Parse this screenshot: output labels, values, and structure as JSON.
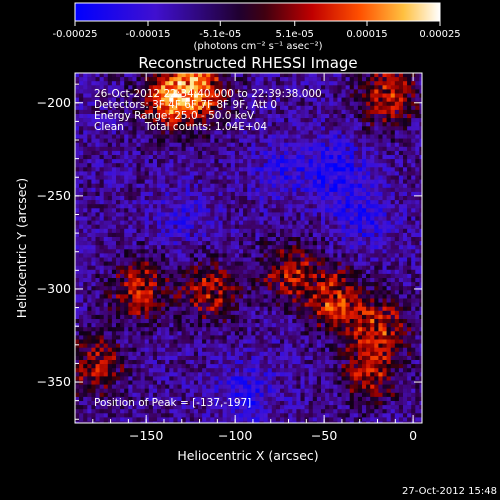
{
  "colorbar": {
    "tick_labels": [
      "-0.00025",
      "-0.00015",
      "-5.1e-05",
      "5.1e-05",
      "0.00015",
      "0.00025"
    ],
    "tick_values": [
      -0.00025,
      -0.00015,
      -5.1e-05,
      5.1e-05,
      0.00015,
      0.00025
    ],
    "units_label": "(photons cm⁻² s⁻¹ asec⁻²)",
    "range": [
      -0.00025,
      0.00025
    ]
  },
  "info": {
    "line1": "26-Oct-2012 22:34:40.000 to 22:39:38.000",
    "line2": "Detectors: 3F 4F 6F 7F 8F 9F, Att 0",
    "line3": "Energy Range: 25.0 - 50.0 keV",
    "line4_a": "Clean",
    "line4_b": "Total counts: 1.04E+04",
    "peak": "Position of Peak = [-137,-197]"
  },
  "footer": {
    "timestamp": "27-Oct-2012 15:48"
  },
  "chart_data": {
    "type": "heatmap",
    "title": "Reconstructed RHESSI Image",
    "xlabel": "Heliocentric X (arcsec)",
    "ylabel": "Heliocentric Y (arcsec)",
    "xlim": [
      -190,
      5
    ],
    "ylim": [
      -372,
      -184
    ],
    "x_ticks": [
      -150,
      -100,
      -50,
      0
    ],
    "y_ticks": [
      -350,
      -300,
      -250,
      -200
    ],
    "x_tick_labels": [
      "−150",
      "−100",
      "−50",
      "0"
    ],
    "y_tick_labels": [
      "−350",
      "−300",
      "−250",
      "−200"
    ],
    "colormap": [
      "#0000ff",
      "#5a10c0",
      "#000000",
      "#b00000",
      "#ff3000",
      "#ff9000",
      "#ffff80",
      "#ffffff"
    ],
    "peak_position": [
      -137,
      -197
    ],
    "hot_regions": [
      {
        "x": -137,
        "y": -197,
        "level": 1.0
      },
      {
        "x": -120,
        "y": -190,
        "level": 0.75
      },
      {
        "x": -15,
        "y": -195,
        "level": 0.7
      },
      {
        "x": -155,
        "y": -300,
        "level": 0.7
      },
      {
        "x": -115,
        "y": -300,
        "level": 0.6
      },
      {
        "x": -70,
        "y": -290,
        "level": 0.6
      },
      {
        "x": -45,
        "y": -305,
        "level": 0.75
      },
      {
        "x": -20,
        "y": -320,
        "level": 0.65
      },
      {
        "x": -25,
        "y": -345,
        "level": 0.55
      },
      {
        "x": -180,
        "y": -340,
        "level": 0.6
      }
    ],
    "cold_regions": [
      {
        "x": -45,
        "y": -235,
        "level": 0.8
      },
      {
        "x": -30,
        "y": -260,
        "level": 0.6
      },
      {
        "x": -75,
        "y": -235,
        "level": 0.5
      },
      {
        "x": -95,
        "y": -355,
        "level": 0.6
      },
      {
        "x": -130,
        "y": -260,
        "level": 0.4
      }
    ]
  }
}
